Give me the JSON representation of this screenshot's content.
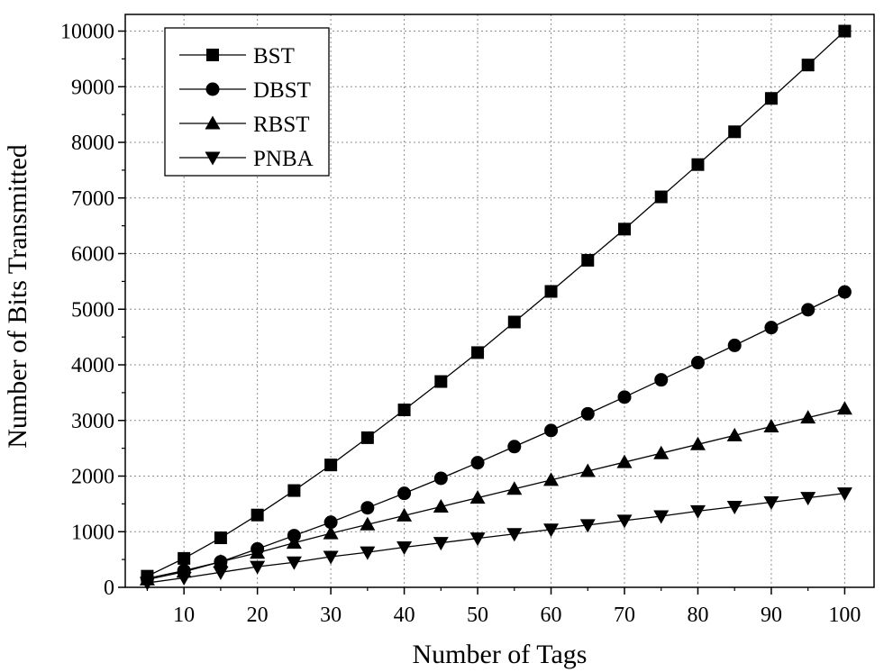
{
  "chart_data": {
    "type": "line",
    "xlabel": "Number of Tags",
    "ylabel": "Number of Bits Transmitted",
    "xlim": [
      2,
      104
    ],
    "ylim": [
      0,
      10300
    ],
    "xticks": [
      10,
      20,
      30,
      40,
      50,
      60,
      70,
      80,
      90,
      100
    ],
    "yticks": [
      0,
      1000,
      2000,
      3000,
      4000,
      5000,
      6000,
      7000,
      8000,
      9000,
      10000
    ],
    "grid": true,
    "legend_position": "top-left",
    "x": [
      5,
      10,
      15,
      20,
      25,
      30,
      35,
      40,
      45,
      50,
      55,
      60,
      65,
      70,
      75,
      80,
      85,
      90,
      95,
      100
    ],
    "series": [
      {
        "name": "BST",
        "marker": "square",
        "values": [
          200,
          520,
          890,
          1300,
          1740,
          2200,
          2690,
          3190,
          3700,
          4220,
          4770,
          5320,
          5880,
          6440,
          7020,
          7600,
          8190,
          8790,
          9390,
          10000
        ]
      },
      {
        "name": "DBST",
        "marker": "circle",
        "values": [
          160,
          300,
          460,
          690,
          930,
          1170,
          1430,
          1690,
          1960,
          2240,
          2530,
          2820,
          3120,
          3420,
          3730,
          4040,
          4350,
          4670,
          4990,
          5310
        ]
      },
      {
        "name": "RBST",
        "marker": "triangle-up",
        "values": [
          140,
          280,
          460,
          620,
          800,
          970,
          1130,
          1290,
          1450,
          1610,
          1770,
          1930,
          2090,
          2250,
          2410,
          2570,
          2730,
          2890,
          3050,
          3210
        ]
      },
      {
        "name": "PNBA",
        "marker": "triangle-down",
        "values": [
          80,
          170,
          270,
          370,
          450,
          550,
          630,
          720,
          800,
          880,
          960,
          1040,
          1120,
          1200,
          1280,
          1370,
          1450,
          1530,
          1610,
          1690
        ]
      }
    ]
  }
}
